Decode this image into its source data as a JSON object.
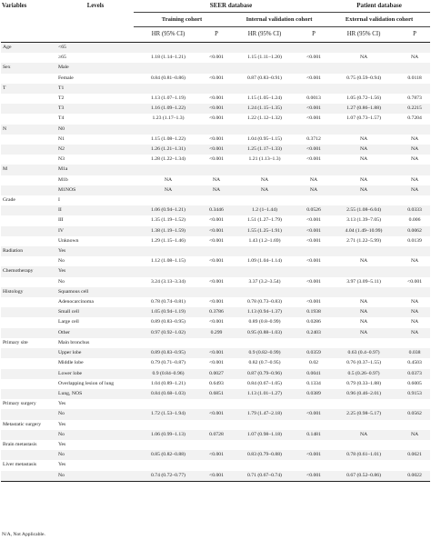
{
  "header": {
    "variables": "Variables",
    "levels": "Levels",
    "seer": "SEER database",
    "patient": "Patient database",
    "training": "Training cohort",
    "internal": "Internal validation cohort",
    "external": "External validation cohort",
    "hr": "HR (95% CI)",
    "p": "P"
  },
  "rows": [
    {
      "v": "Age",
      "l": "<65",
      "a": "",
      "b": "",
      "c": "",
      "d": "",
      "e": "",
      "f": "",
      "band": true
    },
    {
      "v": "",
      "l": "≥65",
      "a": "1.18 (1.14–1.21)",
      "b": "<0.001",
      "c": "1.15 (1.11–1.20)",
      "d": "<0.001",
      "e": "NA",
      "f": "NA",
      "band": false
    },
    {
      "v": "Sex",
      "l": "Male",
      "a": "",
      "b": "",
      "c": "",
      "d": "",
      "e": "",
      "f": "",
      "band": true
    },
    {
      "v": "",
      "l": "Female",
      "a": "0.84 (0.81–0.86)",
      "b": "<0.001",
      "c": "0.87 (0.83–0.91)",
      "d": "<0.001",
      "e": "0.75 (0.59–0.94)",
      "f": "0.0118",
      "band": false
    },
    {
      "v": "T",
      "l": "T1",
      "a": "",
      "b": "",
      "c": "",
      "d": "",
      "e": "",
      "f": "",
      "band": true
    },
    {
      "v": "",
      "l": "T2",
      "a": "1.13 (1.07–1.19)",
      "b": "<0.001",
      "c": "1.15 (1.05–1.24)",
      "d": "0.0013",
      "e": "1.05 (0.72–1.56)",
      "f": "0.7873",
      "band": false
    },
    {
      "v": "",
      "l": "T3",
      "a": "1.16 (1.09–1.22)",
      "b": "<0.001",
      "c": "1.24 (1.15–1.35)",
      "d": "<0.001",
      "e": "1.27 (0.86–1.88)",
      "f": "0.2215",
      "band": true
    },
    {
      "v": "",
      "l": "T4",
      "a": "1.23 (1.17–1.3)",
      "b": "<0.001",
      "c": "1.22 (1.12–1.32)",
      "d": "<0.001",
      "e": "1.07 (0.73–1.57)",
      "f": "0.7204",
      "band": false
    },
    {
      "v": "N",
      "l": "N0",
      "a": "",
      "b": "",
      "c": "",
      "d": "",
      "e": "",
      "f": "",
      "band": true
    },
    {
      "v": "",
      "l": "N1",
      "a": "1.15 (1.08–1.22)",
      "b": "<0.001",
      "c": "1.04 (0.95–1.15)",
      "d": "0.3712",
      "e": "NA",
      "f": "NA",
      "band": false
    },
    {
      "v": "",
      "l": "N2",
      "a": "1.26 (1.21–1.31)",
      "b": "<0.001",
      "c": "1.25 (1.17–1.33)",
      "d": "<0.001",
      "e": "NA",
      "f": "NA",
      "band": true
    },
    {
      "v": "",
      "l": "N3",
      "a": "1.28 (1.22–1.34)",
      "b": "<0.001",
      "c": "1.21 (1.13–1.3)",
      "d": "<0.001",
      "e": "NA",
      "f": "NA",
      "band": false
    },
    {
      "v": "M",
      "l": "M1a",
      "a": "",
      "b": "",
      "c": "",
      "d": "",
      "e": "",
      "f": "",
      "band": true
    },
    {
      "v": "",
      "l": "M1b",
      "a": "NA",
      "b": "NA",
      "c": "NA",
      "d": "NA",
      "e": "NA",
      "f": "NA",
      "band": false
    },
    {
      "v": "",
      "l": "M1NOS",
      "a": "NA",
      "b": "NA",
      "c": "NA",
      "d": "NA",
      "e": "NA",
      "f": "NA",
      "band": true
    },
    {
      "v": "Grade",
      "l": "I",
      "a": "",
      "b": "",
      "c": "",
      "d": "",
      "e": "",
      "f": "",
      "band": false
    },
    {
      "v": "",
      "l": "II",
      "a": "1.06 (0.94–1.21)",
      "b": "0.3446",
      "c": "1.2 (1–1.44)",
      "d": "0.0526",
      "e": "2.55 (1.08–6.04)",
      "f": "0.0333",
      "band": true
    },
    {
      "v": "",
      "l": "III",
      "a": "1.35 (1.19–1.52)",
      "b": "<0.001",
      "c": "1.51 (1.27–1.79)",
      "d": "<0.001",
      "e": "3.13 (1.39–7.05)",
      "f": "0.006",
      "band": false
    },
    {
      "v": "",
      "l": "IV",
      "a": "1.38 (1.19–1.59)",
      "b": "<0.001",
      "c": "1.55 (1.25–1.91)",
      "d": "<0.001",
      "e": "4.04 (1.49–10.99)",
      "f": "0.0062",
      "band": true
    },
    {
      "v": "",
      "l": "Unknown",
      "a": "1.29 (1.15–1.46)",
      "b": "<0.001",
      "c": "1.43 (1.2–1.69)",
      "d": "<0.001",
      "e": "2.71 (1.22–5.99)",
      "f": "0.0139",
      "band": false
    },
    {
      "v": "Radiation",
      "l": "Yes",
      "a": "",
      "b": "",
      "c": "",
      "d": "",
      "e": "",
      "f": "",
      "band": true
    },
    {
      "v": "",
      "l": "No",
      "a": "1.12 (1.08–1.15)",
      "b": "<0.001",
      "c": "1.09 (1.04–1.14)",
      "d": "<0.001",
      "e": "NA",
      "f": "NA",
      "band": false
    },
    {
      "v": "Chemotherapy",
      "l": "Yes",
      "a": "",
      "b": "",
      "c": "",
      "d": "",
      "e": "",
      "f": "",
      "band": true
    },
    {
      "v": "",
      "l": "No",
      "a": "3.24 (3.13–3.34)",
      "b": "<0.001",
      "c": "3.37 (3.2–3.54)",
      "d": "<0.001",
      "e": "3.97 (3.09–5.11)",
      "f": "<0.001",
      "band": false
    },
    {
      "v": "Histology",
      "l": "Squamous cell",
      "a": "",
      "b": "",
      "c": "",
      "d": "",
      "e": "",
      "f": "",
      "band": true
    },
    {
      "v": "",
      "l": "Adenocarcinoma",
      "a": "0.78 (0.74–0.81)",
      "b": "<0.001",
      "c": "0.78 (0.73–0.83)",
      "d": "<0.001",
      "e": "NA",
      "f": "NA",
      "band": false
    },
    {
      "v": "",
      "l": "Small cell",
      "a": "1.05 (0.94–1.19)",
      "b": "0.3786",
      "c": "1.13 (0.94–1.37)",
      "d": "0.1938",
      "e": "NA",
      "f": "NA",
      "band": true
    },
    {
      "v": "",
      "l": "Large cell",
      "a": "0.89 (0.83–0.95)",
      "b": "<0.001",
      "c": "0.89 (0.8–0.99)",
      "d": "0.0286",
      "e": "NA",
      "f": "NA",
      "band": false
    },
    {
      "v": "",
      "l": "Other",
      "a": "0.97 (0.92–1.02)",
      "b": "0.299",
      "c": "0.95 (0.88–1.03)",
      "d": "0.2403",
      "e": "NA",
      "f": "NA",
      "band": true
    },
    {
      "v": "Primary site",
      "l": "Main bronchus",
      "a": "",
      "b": "",
      "c": "",
      "d": "",
      "e": "",
      "f": "",
      "band": false
    },
    {
      "v": "",
      "l": "Upper lobe",
      "a": "0.89 (0.83–0.95)",
      "b": "<0.001",
      "c": "0.9 (0.82–0.99)",
      "d": "0.0359",
      "e": "0.63 (0.4–0.97)",
      "f": "0.038",
      "band": true
    },
    {
      "v": "",
      "l": "Middle lobe",
      "a": "0.79 (0.71–0.87)",
      "b": "<0.001",
      "c": "0.82 (0.7–0.95)",
      "d": "0.02",
      "e": "0.76 (0.37–1.55)",
      "f": "0.4503",
      "band": false
    },
    {
      "v": "",
      "l": "Lower lobe",
      "a": "0.9 (0.84–0.96)",
      "b": "0.0027",
      "c": "0.87 (0.79–0.96)",
      "d": "0.0041",
      "e": "0.5 (0.26–0.97)",
      "f": "0.0373",
      "band": true
    },
    {
      "v": "",
      "l": "Overlapping lesion of lung",
      "a": "1.04 (0.89–1.21)",
      "b": "0.6493",
      "c": "0.84 (0.67–1.05)",
      "d": "0.1334",
      "e": "0.79 (0.33–1.88)",
      "f": "0.6005",
      "band": false
    },
    {
      "v": "",
      "l": "Lung, NOS",
      "a": "0.84 (0.68–1.03)",
      "b": "0.6851",
      "c": "1.13 (1.01–1.27)",
      "d": "0.0389",
      "e": "0.96 (0.46–2.01)",
      "f": "0.9153",
      "band": true
    },
    {
      "v": "Primary surgery",
      "l": "Yes",
      "a": "",
      "b": "",
      "c": "",
      "d": "",
      "e": "",
      "f": "",
      "band": false
    },
    {
      "v": "",
      "l": "No",
      "a": "1.72 (1.53–1.94)",
      "b": "<0.001",
      "c": "1.79 (1.47–2.18)",
      "d": "<0.001",
      "e": "2.25 (0.98–5.17)",
      "f": "0.0562",
      "band": true
    },
    {
      "v": "Metastatic surgery",
      "l": "Yes",
      "a": "",
      "b": "",
      "c": "",
      "d": "",
      "e": "",
      "f": "",
      "band": false
    },
    {
      "v": "",
      "l": "No",
      "a": "1.06 (0.99–1.13)",
      "b": "0.0728",
      "c": "1.07 (0.98–1.18)",
      "d": "0.1481",
      "e": "NA",
      "f": "NA",
      "band": true
    },
    {
      "v": "Brain metastasis",
      "l": "Yes",
      "a": "",
      "b": "",
      "c": "",
      "d": "",
      "e": "",
      "f": "",
      "band": false
    },
    {
      "v": "",
      "l": "No",
      "a": "0.85 (0.82–0.88)",
      "b": "<0.001",
      "c": "0.83 (0.79–0.88)",
      "d": "<0.001",
      "e": "0.78 (0.61–1.01)",
      "f": "0.0621",
      "band": true
    },
    {
      "v": "Liver metastasis",
      "l": "Yes",
      "a": "",
      "b": "",
      "c": "",
      "d": "",
      "e": "",
      "f": "",
      "band": false
    },
    {
      "v": "",
      "l": "No",
      "a": "0.74 (0.72–0.77)",
      "b": "<0.001",
      "c": "0.71 (0.67–0.74)",
      "d": "<0.001",
      "e": "0.67 (0.52–0.86)",
      "f": "0.0022",
      "band": true
    }
  ],
  "footnote": "N/A, Not Applicable."
}
